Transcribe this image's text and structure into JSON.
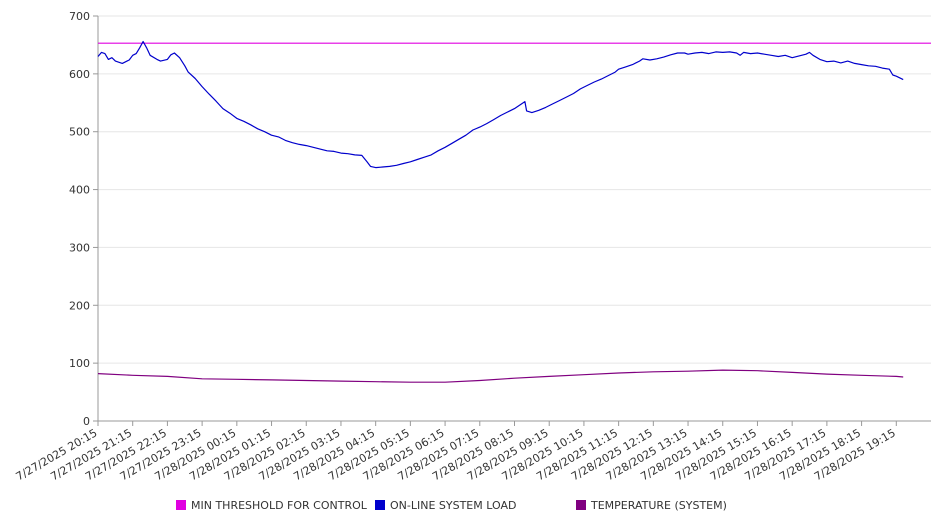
{
  "chart_data": {
    "type": "line",
    "ylim": [
      0,
      700
    ],
    "yticks": [
      0,
      100,
      200,
      300,
      400,
      500,
      600,
      700
    ],
    "grid": true,
    "legend_position": "bottom",
    "xtick_labels": [
      "7/27/2025 20:15",
      "7/27/2025 21:15",
      "7/27/2025 22:15",
      "7/27/2025 23:15",
      "7/28/2025 00:15",
      "7/28/2025 01:15",
      "7/28/2025 02:15",
      "7/28/2025 03:15",
      "7/28/2025 04:15",
      "7/28/2025 05:15",
      "7/28/2025 06:15",
      "7/28/2025 07:15",
      "7/28/2025 08:15",
      "7/28/2025 09:15",
      "7/28/2025 10:15",
      "7/28/2025 11:15",
      "7/28/2025 12:15",
      "7/28/2025 13:15",
      "7/28/2025 14:15",
      "7/28/2025 15:15",
      "7/28/2025 16:15",
      "7/28/2025 17:15",
      "7/28/2025 18:15",
      "7/28/2025 19:15"
    ],
    "x_hours_range": [
      0,
      24
    ],
    "series": [
      {
        "name": "MIN THRESHOLD FOR CONTROL",
        "color": "#e000e0",
        "points": [
          [
            0,
            653
          ],
          [
            24,
            653
          ]
        ]
      },
      {
        "name": "ON-LINE SYSTEM LOAD",
        "color": "#0000cc",
        "points": [
          [
            0,
            630
          ],
          [
            0.1,
            637
          ],
          [
            0.2,
            635
          ],
          [
            0.3,
            625
          ],
          [
            0.4,
            628
          ],
          [
            0.5,
            622
          ],
          [
            0.7,
            618
          ],
          [
            0.9,
            624
          ],
          [
            1.0,
            632
          ],
          [
            1.1,
            635
          ],
          [
            1.2,
            645
          ],
          [
            1.3,
            656
          ],
          [
            1.4,
            645
          ],
          [
            1.5,
            632
          ],
          [
            1.7,
            625
          ],
          [
            1.8,
            622
          ],
          [
            2.0,
            625
          ],
          [
            2.1,
            633
          ],
          [
            2.2,
            636
          ],
          [
            2.35,
            628
          ],
          [
            2.5,
            614
          ],
          [
            2.6,
            603
          ],
          [
            2.8,
            592
          ],
          [
            3.0,
            578
          ],
          [
            3.2,
            565
          ],
          [
            3.4,
            553
          ],
          [
            3.6,
            540
          ],
          [
            3.8,
            532
          ],
          [
            4.0,
            523
          ],
          [
            4.2,
            518
          ],
          [
            4.4,
            512
          ],
          [
            4.6,
            505
          ],
          [
            4.8,
            500
          ],
          [
            5.0,
            494
          ],
          [
            5.2,
            491
          ],
          [
            5.4,
            485
          ],
          [
            5.6,
            481
          ],
          [
            5.8,
            478
          ],
          [
            6.0,
            476
          ],
          [
            6.2,
            473
          ],
          [
            6.4,
            470
          ],
          [
            6.6,
            467
          ],
          [
            6.8,
            466
          ],
          [
            7.0,
            463
          ],
          [
            7.2,
            462
          ],
          [
            7.4,
            460
          ],
          [
            7.6,
            459
          ],
          [
            7.75,
            448
          ],
          [
            7.85,
            440
          ],
          [
            8.0,
            438
          ],
          [
            8.2,
            439
          ],
          [
            8.4,
            440
          ],
          [
            8.6,
            442
          ],
          [
            8.8,
            445
          ],
          [
            9.0,
            448
          ],
          [
            9.2,
            452
          ],
          [
            9.4,
            456
          ],
          [
            9.6,
            460
          ],
          [
            9.8,
            467
          ],
          [
            10.0,
            473
          ],
          [
            10.2,
            480
          ],
          [
            10.4,
            487
          ],
          [
            10.6,
            494
          ],
          [
            10.8,
            503
          ],
          [
            11.0,
            508
          ],
          [
            11.2,
            514
          ],
          [
            11.4,
            521
          ],
          [
            11.6,
            528
          ],
          [
            11.8,
            534
          ],
          [
            12.0,
            540
          ],
          [
            12.15,
            546
          ],
          [
            12.3,
            552
          ],
          [
            12.35,
            536
          ],
          [
            12.5,
            533
          ],
          [
            12.7,
            537
          ],
          [
            12.9,
            542
          ],
          [
            13.1,
            548
          ],
          [
            13.3,
            554
          ],
          [
            13.5,
            560
          ],
          [
            13.7,
            566
          ],
          [
            13.9,
            574
          ],
          [
            14.1,
            580
          ],
          [
            14.3,
            586
          ],
          [
            14.5,
            591
          ],
          [
            14.7,
            597
          ],
          [
            14.9,
            603
          ],
          [
            15.0,
            608
          ],
          [
            15.2,
            612
          ],
          [
            15.4,
            616
          ],
          [
            15.6,
            622
          ],
          [
            15.7,
            626
          ],
          [
            15.9,
            624
          ],
          [
            16.1,
            626
          ],
          [
            16.3,
            629
          ],
          [
            16.5,
            633
          ],
          [
            16.7,
            636
          ],
          [
            16.9,
            636
          ],
          [
            17.0,
            634
          ],
          [
            17.2,
            636
          ],
          [
            17.4,
            637
          ],
          [
            17.6,
            635
          ],
          [
            17.8,
            638
          ],
          [
            18.0,
            637
          ],
          [
            18.2,
            638
          ],
          [
            18.4,
            636
          ],
          [
            18.5,
            632
          ],
          [
            18.6,
            637
          ],
          [
            18.8,
            635
          ],
          [
            19.0,
            636
          ],
          [
            19.2,
            634
          ],
          [
            19.4,
            632
          ],
          [
            19.6,
            630
          ],
          [
            19.8,
            632
          ],
          [
            20.0,
            628
          ],
          [
            20.2,
            631
          ],
          [
            20.4,
            634
          ],
          [
            20.5,
            637
          ],
          [
            20.6,
            632
          ],
          [
            20.8,
            625
          ],
          [
            21.0,
            621
          ],
          [
            21.2,
            622
          ],
          [
            21.4,
            619
          ],
          [
            21.6,
            622
          ],
          [
            21.8,
            618
          ],
          [
            22.0,
            616
          ],
          [
            22.2,
            614
          ],
          [
            22.4,
            613
          ],
          [
            22.6,
            610
          ],
          [
            22.8,
            608
          ],
          [
            22.9,
            598
          ],
          [
            23.0,
            596
          ],
          [
            23.2,
            590
          ]
        ]
      },
      {
        "name": "TEMPERATURE (SYSTEM)",
        "color": "#800080",
        "points": [
          [
            0,
            82
          ],
          [
            1,
            79
          ],
          [
            2,
            77
          ],
          [
            3,
            73
          ],
          [
            4,
            72
          ],
          [
            5,
            71
          ],
          [
            6,
            70
          ],
          [
            7,
            69
          ],
          [
            8,
            68
          ],
          [
            9,
            67
          ],
          [
            10,
            67
          ],
          [
            11,
            70
          ],
          [
            12,
            74
          ],
          [
            13,
            77
          ],
          [
            14,
            80
          ],
          [
            15,
            83
          ],
          [
            16,
            85
          ],
          [
            17,
            86
          ],
          [
            18,
            88
          ],
          [
            19,
            87
          ],
          [
            20,
            84
          ],
          [
            21,
            81
          ],
          [
            22,
            79
          ],
          [
            23,
            77
          ],
          [
            23.2,
            76
          ]
        ]
      }
    ]
  }
}
